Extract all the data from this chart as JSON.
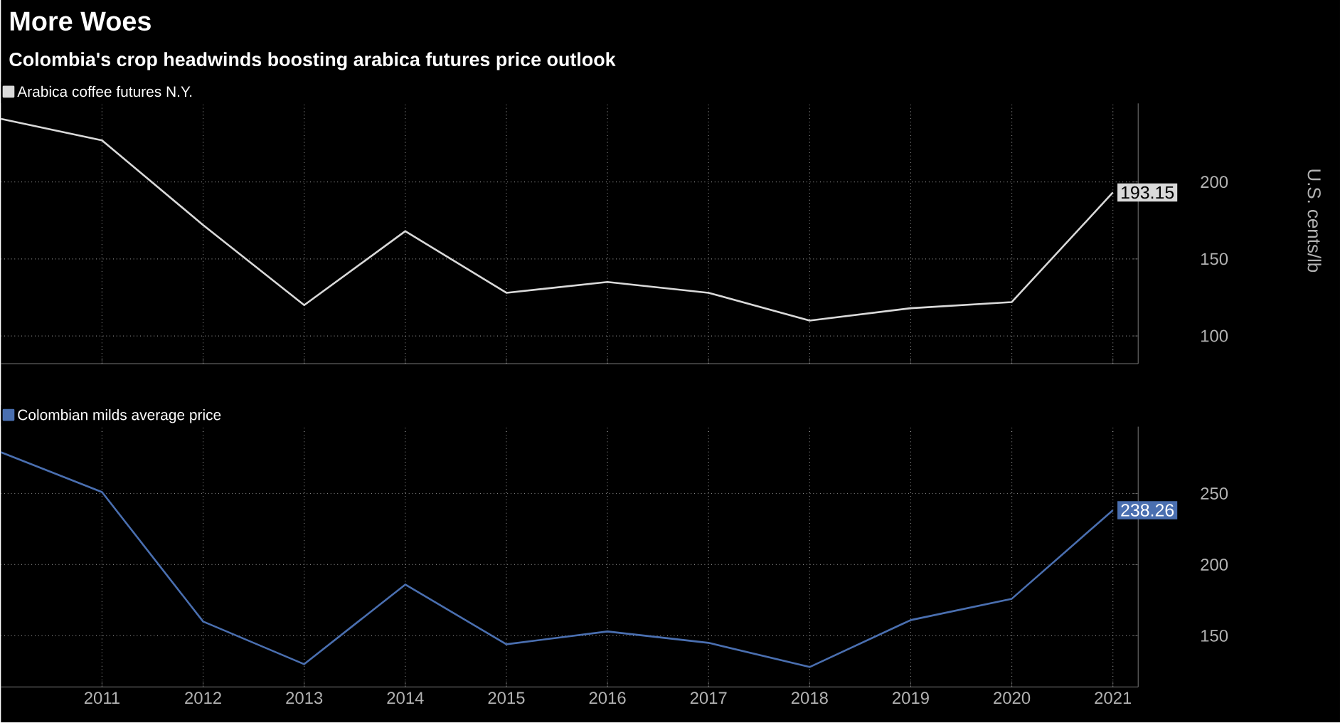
{
  "chart_data": [
    {
      "type": "line",
      "title": "More Woes",
      "subtitle": "Colombia's crop headwinds boosting arabica futures price outlook",
      "ylabel": "U.S. cents/lb",
      "x": [
        2010,
        2011,
        2012,
        2013,
        2014,
        2015,
        2016,
        2017,
        2018,
        2019,
        2020,
        2021
      ],
      "series": [
        {
          "name": "Arabica coffee futures N.Y.",
          "color": "#d9d9d9",
          "values": [
            241,
            227,
            172,
            120,
            168,
            128,
            135,
            128,
            110,
            118,
            122,
            193.15
          ],
          "value_labels": [
            null,
            null,
            null,
            null,
            null,
            null,
            null,
            null,
            null,
            null,
            null,
            "193.15"
          ]
        }
      ],
      "xlim": [
        2010,
        2021.25
      ],
      "ylim": [
        82,
        251
      ],
      "xticks": [
        2011,
        2012,
        2013,
        2014,
        2015,
        2016,
        2017,
        2018,
        2019,
        2020,
        2021
      ],
      "yticks": [
        100,
        150,
        200
      ],
      "grid": true,
      "legend": "top left",
      "tick_labels": "y"
    },
    {
      "type": "line",
      "x": [
        2010,
        2011,
        2012,
        2013,
        2014,
        2015,
        2016,
        2017,
        2018,
        2019,
        2020,
        2021
      ],
      "series": [
        {
          "name": "Colombian milds average price",
          "color": "#4a6fb0",
          "values": [
            279,
            251,
            160,
            130,
            186,
            144,
            153,
            145,
            128,
            161,
            176,
            238.26
          ],
          "value_labels": [
            null,
            null,
            null,
            null,
            null,
            null,
            null,
            null,
            null,
            null,
            null,
            "238.26"
          ]
        }
      ],
      "xlim": [
        2010,
        2021.25
      ],
      "ylim": [
        114,
        297
      ],
      "xticks": [
        2011,
        2012,
        2013,
        2014,
        2015,
        2016,
        2017,
        2018,
        2019,
        2020,
        2021
      ],
      "yticks": [
        150,
        200,
        250
      ],
      "grid": true,
      "legend": "top left"
    }
  ]
}
